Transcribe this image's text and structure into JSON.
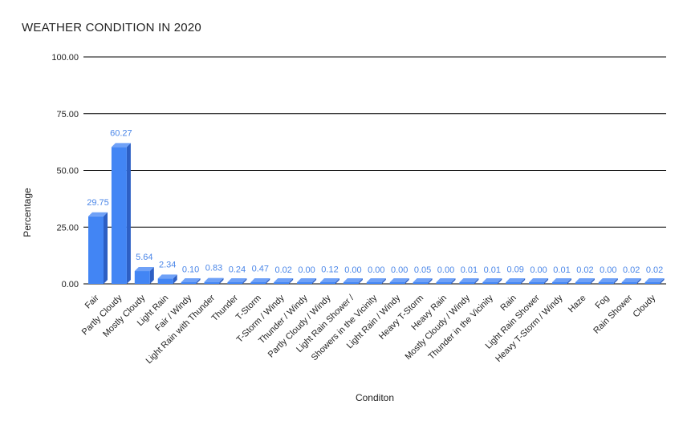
{
  "chart_data": {
    "type": "bar",
    "title": "WEATHER CONDITION IN 2020",
    "xlabel": "Conditon",
    "ylabel": "Percentage",
    "ylim": [
      0,
      100
    ],
    "yticks": [
      "0.00",
      "25.00",
      "50.00",
      "75.00",
      "100.00"
    ],
    "ytick_values": [
      0,
      25,
      50,
      75,
      100
    ],
    "grid": true,
    "bar_color": "#4285f4",
    "bar_side_color": "#2d5fc4",
    "bar_top_color": "#6fa1f7",
    "label_color": "#4a86e8",
    "categories": [
      "Fair",
      "Partly Cloudy",
      "Mostly Cloudy",
      "Light Rain",
      "Fair / Windy",
      "Light Rain with Thunder",
      "Thunder",
      "T-Storm",
      "T-Storm / Windy",
      "Thunder / Windy",
      "Partly Cloudy / Windy",
      "Light Rain Shower /",
      "Showers in the Vicinity",
      "Light Rain / Windy",
      "Heavy T-Storm",
      "Heavy Rain",
      "Mostly Cloudy / Windy",
      "Thunder in the Vicinity",
      "Rain",
      "Light Rain Shower",
      "Heavy T-Storm / Windy",
      "Haze",
      "Fog",
      "Rain Shower",
      "Cloudy"
    ],
    "values": [
      29.75,
      60.27,
      5.64,
      2.34,
      0.1,
      0.83,
      0.24,
      0.47,
      0.02,
      0.0,
      0.12,
      0.0,
      0.0,
      0.0,
      0.05,
      0.0,
      0.01,
      0.01,
      0.09,
      0.0,
      0.01,
      0.02,
      0.0,
      0.02,
      0.02
    ],
    "value_labels": [
      "29.75",
      "60.27",
      "5.64",
      "2.34",
      "0.10",
      "0.83",
      "0.24",
      "0.47",
      "0.02",
      "0.00",
      "0.12",
      "0.00",
      "0.00",
      "0.00",
      "0.05",
      "0.00",
      "0.01",
      "0.01",
      "0.09",
      "0.00",
      "0.01",
      "0.02",
      "0.00",
      "0.02",
      "0.02"
    ]
  }
}
